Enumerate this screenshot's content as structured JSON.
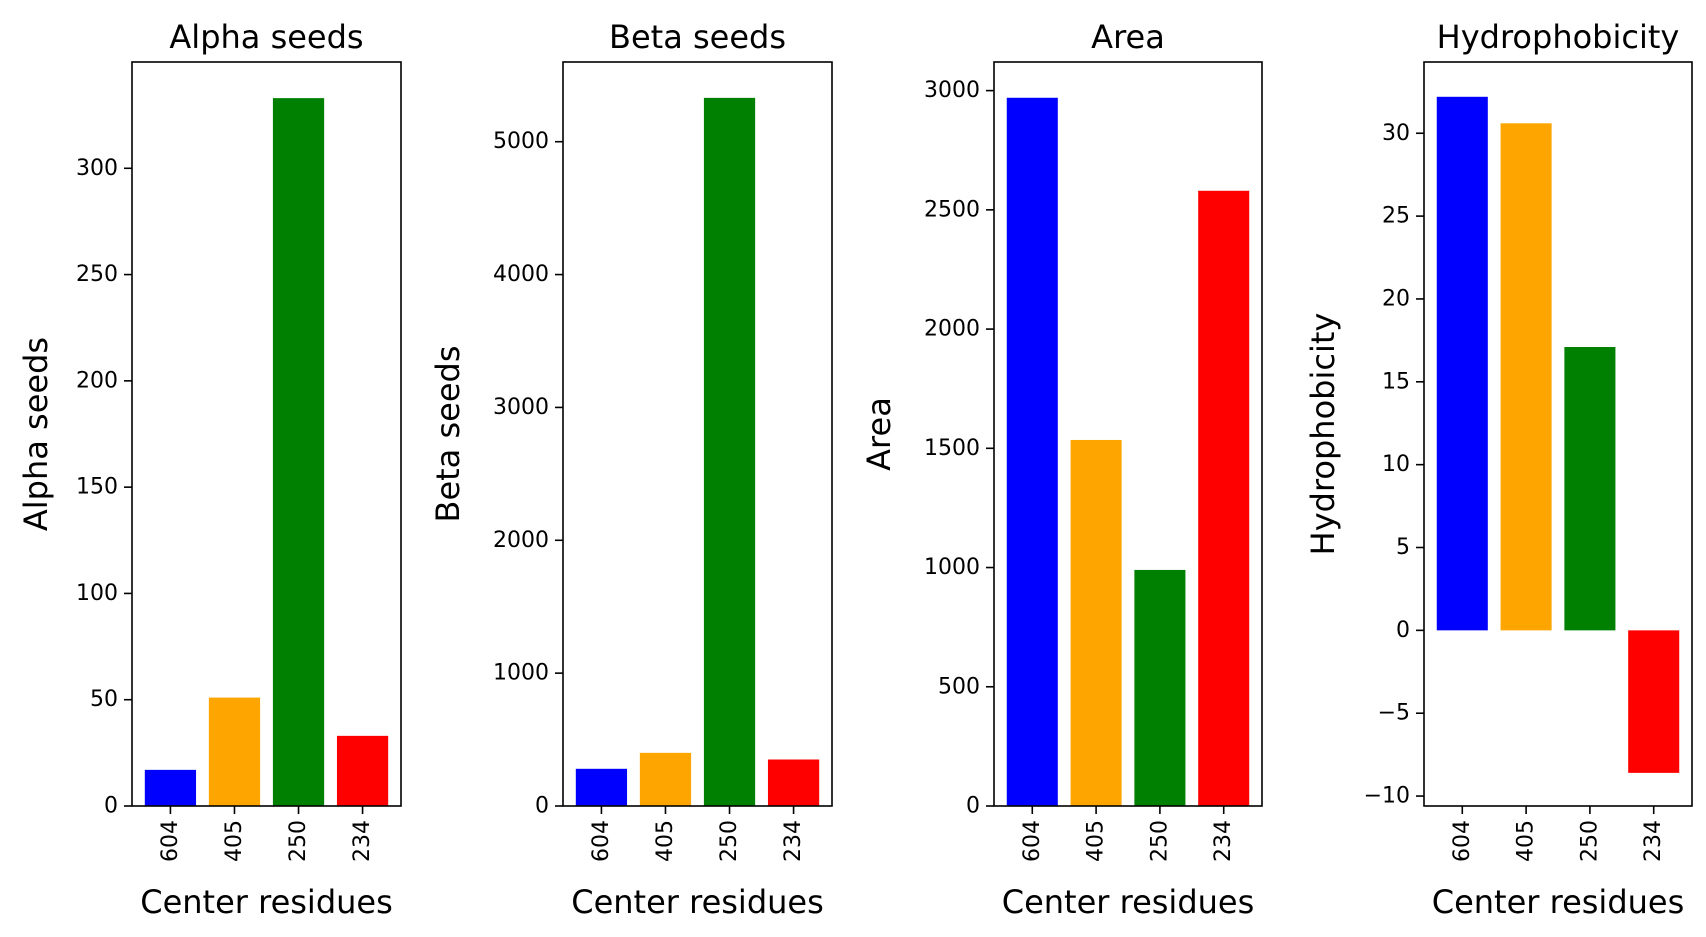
{
  "chart_data": [
    {
      "type": "bar",
      "title": "Alpha seeds",
      "xlabel": "Center residues",
      "ylabel": "Alpha seeds",
      "categories": [
        "604",
        "405",
        "250",
        "234"
      ],
      "values": [
        17,
        51,
        333,
        33
      ],
      "colors": [
        "#0000ff",
        "#ffa500",
        "#008000",
        "#ff0000"
      ],
      "ylim": [
        0,
        350
      ],
      "yticks": [
        0,
        50,
        100,
        150,
        200,
        250,
        300
      ],
      "ytick_labels": [
        "0",
        "50",
        "100",
        "150",
        "200",
        "250",
        "300"
      ],
      "grid": false
    },
    {
      "type": "bar",
      "title": "Beta seeds",
      "xlabel": "Center residues",
      "ylabel": "Beta seeds",
      "categories": [
        "604",
        "405",
        "250",
        "234"
      ],
      "values": [
        280,
        400,
        5330,
        350
      ],
      "colors": [
        "#0000ff",
        "#ffa500",
        "#008000",
        "#ff0000"
      ],
      "ylim": [
        0,
        5600
      ],
      "yticks": [
        0,
        1000,
        2000,
        3000,
        4000,
        5000
      ],
      "ytick_labels": [
        "0",
        "1000",
        "2000",
        "3000",
        "4000",
        "5000"
      ],
      "grid": false
    },
    {
      "type": "bar",
      "title": "Area",
      "xlabel": "Center residues",
      "ylabel": "Area",
      "categories": [
        "604",
        "405",
        "250",
        "234"
      ],
      "values": [
        2970,
        1535,
        990,
        2580
      ],
      "colors": [
        "#0000ff",
        "#ffa500",
        "#008000",
        "#ff0000"
      ],
      "ylim": [
        0,
        3120
      ],
      "yticks": [
        0,
        500,
        1000,
        1500,
        2000,
        2500,
        3000
      ],
      "ytick_labels": [
        "0",
        "500",
        "1000",
        "1500",
        "2000",
        "2500",
        "3000"
      ],
      "grid": false
    },
    {
      "type": "bar",
      "title": "Hydrophobicity",
      "xlabel": "Center residues",
      "ylabel": "Hydrophobicity",
      "categories": [
        "604",
        "405",
        "250",
        "234"
      ],
      "values": [
        32.2,
        30.6,
        17.1,
        -8.6
      ],
      "colors": [
        "#0000ff",
        "#ffa500",
        "#008000",
        "#ff0000"
      ],
      "ylim": [
        -10.6,
        34.3
      ],
      "yticks": [
        -10,
        -5,
        0,
        5,
        10,
        15,
        20,
        25,
        30
      ],
      "ytick_labels": [
        "−10",
        "−5",
        "0",
        "5",
        "10",
        "15",
        "20",
        "25",
        "30"
      ],
      "grid": false
    }
  ]
}
